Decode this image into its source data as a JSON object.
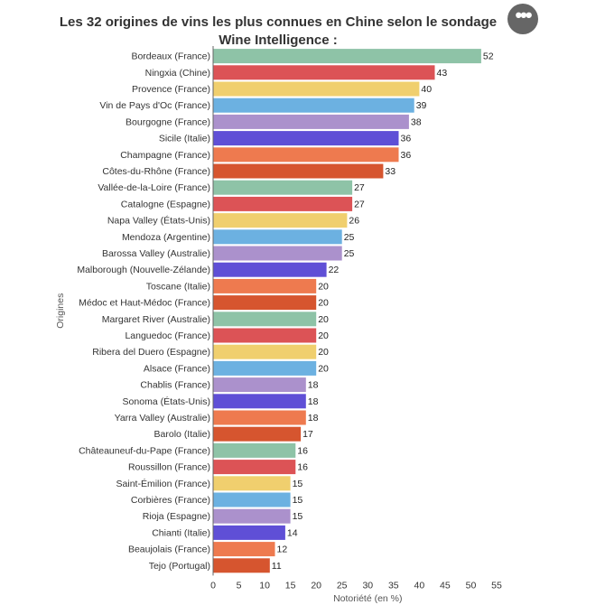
{
  "chart_data": {
    "type": "bar",
    "orientation": "horizontal",
    "title": "Les 32 origines de vins les plus connues en Chine selon le sondage Wine Intelligence :",
    "xlabel": "Notoriété (en %)",
    "ylabel": "Origines",
    "xlim": [
      0,
      55
    ],
    "xticks": [
      0,
      5,
      10,
      15,
      20,
      25,
      30,
      35,
      40,
      45,
      50,
      55
    ],
    "grid": false,
    "legend": "none",
    "categories": [
      "Bordeaux (France)",
      "Ningxia (Chine)",
      "Provence (France)",
      "Vin de Pays d'Oc (France)",
      "Bourgogne (France)",
      "Sicile (Italie)",
      "Champagne (France)",
      "Côtes-du-Rhône (France)",
      "Vallée-de-la-Loire (France)",
      "Catalogne (Espagne)",
      "Napa Valley (États-Unis)",
      "Mendoza (Argentine)",
      "Barossa Valley (Australie)",
      "Malborough (Nouvelle-Zélande)",
      "Toscane (Italie)",
      "Médoc et Haut-Médoc (France)",
      "Margaret River (Australie)",
      "Languedoc (France)",
      "Ribera del Duero (Espagne)",
      "Alsace (France)",
      "Chablis (France)",
      "Sonoma (États-Unis)",
      "Yarra Valley (Australie)",
      "Barolo (Italie)",
      "Châteauneuf-du-Pape (France)",
      "Roussillon (France)",
      "Saint-Émilion (France)",
      "Corbières (France)",
      "Rioja (Espagne)",
      "Chianti (Italie)",
      "Beaujolais (France)",
      "Tejo (Portugal)"
    ],
    "values": [
      52,
      43,
      40,
      39,
      38,
      36,
      36,
      33,
      27,
      27,
      26,
      25,
      25,
      22,
      20,
      20,
      20,
      20,
      20,
      20,
      18,
      18,
      18,
      17,
      16,
      16,
      15,
      15,
      15,
      14,
      12,
      11
    ],
    "palette": [
      "#8ec3a7",
      "#dc5356",
      "#f0cf6e",
      "#6cb1e1",
      "#ab91cc",
      "#5f4fd6",
      "#ee7a4f",
      "#d6552f"
    ]
  },
  "menu": {
    "button_glyph": "•••"
  }
}
